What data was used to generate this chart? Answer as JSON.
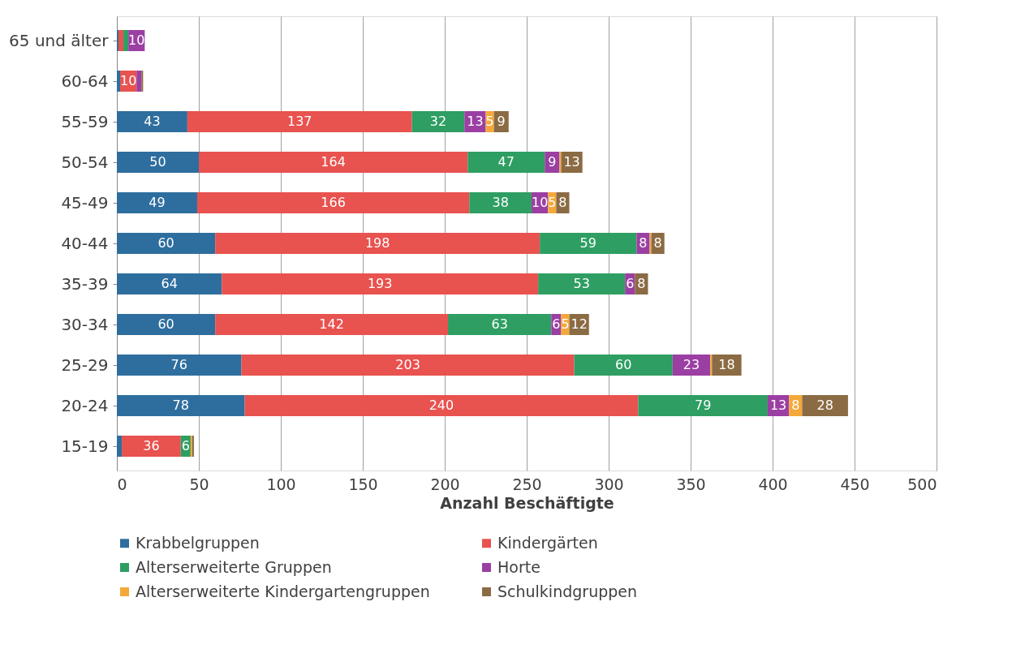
{
  "chart_data": {
    "type": "bar",
    "orientation": "horizontal",
    "stacked": true,
    "categories": [
      "65 und älter",
      "60-64",
      "55-59",
      "50-54",
      "45-49",
      "40-44",
      "35-39",
      "30-34",
      "25-29",
      "20-24",
      "15-19"
    ],
    "series": [
      {
        "name": "Krabbelgruppen",
        "color": "#2e6e9e",
        "values": [
          1,
          2,
          43,
          50,
          49,
          60,
          64,
          60,
          76,
          78,
          3
        ],
        "value_labels": [
          null,
          null,
          "43",
          "50",
          "49",
          "60",
          "64",
          "60",
          "76",
          "78",
          null
        ]
      },
      {
        "name": "Kindergärten",
        "color": "#e8524f",
        "values": [
          3,
          10,
          137,
          164,
          166,
          198,
          193,
          142,
          203,
          240,
          36
        ],
        "value_labels": [
          null,
          "10",
          "137",
          "164",
          "166",
          "198",
          "193",
          "142",
          "203",
          "240",
          "36"
        ]
      },
      {
        "name": "Alterserweiterte Gruppen",
        "color": "#2e9e62",
        "values": [
          3,
          0,
          32,
          47,
          38,
          59,
          53,
          63,
          60,
          79,
          6
        ],
        "value_labels": [
          null,
          null,
          "32",
          "47",
          "38",
          "59",
          "53",
          "63",
          "60",
          "79",
          "6"
        ]
      },
      {
        "name": "Horte",
        "color": "#9b3fa3",
        "values": [
          10,
          3,
          13,
          9,
          10,
          8,
          6,
          6,
          23,
          13,
          0
        ],
        "value_labels": [
          "10",
          null,
          "13",
          "9",
          "10",
          "8",
          "6",
          "6",
          "23",
          "13",
          null
        ]
      },
      {
        "name": "Alterserweiterte Kindergartengruppen",
        "color": "#f5a83a",
        "values": [
          0,
          0,
          5,
          1,
          5,
          1,
          0,
          5,
          1,
          8,
          1
        ],
        "value_labels": [
          null,
          null,
          "5",
          null,
          "5",
          null,
          null,
          "5",
          null,
          "8",
          null
        ]
      },
      {
        "name": "Schulkindgruppen",
        "color": "#8b6b43",
        "values": [
          0,
          1,
          9,
          13,
          8,
          8,
          8,
          12,
          18,
          28,
          1
        ],
        "value_labels": [
          null,
          null,
          "9",
          "13",
          "8",
          "8",
          "8",
          "12",
          "18",
          "28",
          null
        ]
      }
    ],
    "xlim": [
      0,
      500
    ],
    "xticks": [
      0,
      50,
      100,
      150,
      200,
      250,
      300,
      350,
      400,
      450,
      500
    ],
    "xlabel": "Anzahl Beschäftigte",
    "grid": "x",
    "legend": "bottom"
  }
}
